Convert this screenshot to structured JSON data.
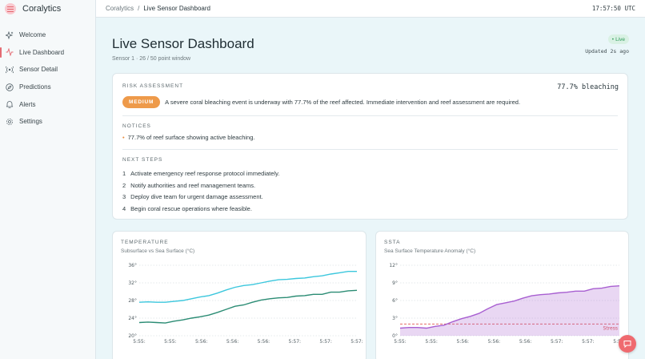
{
  "app": {
    "name": "Coralytics"
  },
  "sidebar": {
    "items": [
      {
        "label": "Welcome",
        "icon": "sparkle-icon"
      },
      {
        "label": "Live Dashboard",
        "icon": "pulse-icon",
        "active": true
      },
      {
        "label": "Sensor Detail",
        "icon": "radio-icon"
      },
      {
        "label": "Predictions",
        "icon": "compass-icon"
      },
      {
        "label": "Alerts",
        "icon": "bell-icon"
      },
      {
        "label": "Settings",
        "icon": "gear-icon"
      }
    ]
  },
  "topbar": {
    "breadcrumb": [
      "Coralytics",
      "Live Sensor Dashboard"
    ],
    "clock": "17:57:50 UTC"
  },
  "header": {
    "title": "Live Sensor Dashboard",
    "subtitle": "Sensor 1 · 26 / 50 point window",
    "live_label": "Live",
    "updated": "Updated 2s ago"
  },
  "risk": {
    "label": "RISK ASSESSMENT",
    "level": "MEDIUM",
    "bleaching": "77.7% bleaching",
    "description": "A severe coral bleaching event is underway with 77.7% of the reef affected. Immediate intervention and reef assessment are required.",
    "notices_label": "NOTICES",
    "notices": [
      "77.7% of reef surface showing active bleaching."
    ],
    "steps_label": "NEXT STEPS",
    "steps": [
      {
        "n": "1",
        "text": "Activate emergency reef response protocol immediately."
      },
      {
        "n": "2",
        "text": "Notify authorities and reef management teams."
      },
      {
        "n": "3",
        "text": "Deploy dive team for urgent damage assessment."
      },
      {
        "n": "4",
        "text": "Begin coral rescue operations where feasible."
      }
    ]
  },
  "colors": {
    "accent": "#e46a72",
    "medium": "#ee9a4a",
    "subsurface": "#2b8c74",
    "surface": "#3cc7dd",
    "ssta": "#a85fd1",
    "stress": "#e0534f"
  },
  "chart_data": [
    {
      "type": "line",
      "title": "TEMPERATURE",
      "subtitle": "Subsurface vs Sea Surface (°C)",
      "ylim": [
        20,
        36
      ],
      "yticks": [
        "36°",
        "32°",
        "28°",
        "24°",
        "20°"
      ],
      "xticks": [
        "5:55:",
        "5:55:",
        "5:56:",
        "5:56:",
        "5:56:",
        "5:57:",
        "5:57:",
        "5:57:"
      ],
      "grid": true,
      "series": [
        {
          "values": [
            27.6,
            27.7,
            27.6,
            27.6,
            27.8,
            28.0,
            28.4,
            28.8,
            29.1,
            29.7,
            30.4,
            31.0,
            31.4,
            31.6,
            32.0,
            32.4,
            32.7,
            32.8,
            33.0,
            33.1,
            33.4,
            33.6,
            34.0,
            34.3,
            34.6,
            34.6
          ]
        },
        {
          "values": [
            23.0,
            23.1,
            23.0,
            22.9,
            23.3,
            23.6,
            24.0,
            24.3,
            24.7,
            25.3,
            26.0,
            26.7,
            27.0,
            27.6,
            28.1,
            28.4,
            28.6,
            28.7,
            29.0,
            29.1,
            29.4,
            29.4,
            29.9,
            29.9,
            30.2,
            30.3
          ]
        }
      ]
    },
    {
      "type": "area",
      "title": "SSTA",
      "subtitle": "Sea Surface Temperature Anomaly (°C)",
      "ylim": [
        0,
        12
      ],
      "yticks": [
        "12°",
        "9°",
        "6°",
        "3°",
        "0°"
      ],
      "xticks": [
        "5:55:",
        "5:55:",
        "5:56:",
        "5:56:",
        "5:56:",
        "5:57:",
        "5:57:",
        "5:57:"
      ],
      "grid": true,
      "threshold": {
        "value": 2.0,
        "label": "Stress"
      },
      "series": [
        {
          "values": [
            1.3,
            1.4,
            1.4,
            1.3,
            1.6,
            1.8,
            2.4,
            2.9,
            3.3,
            3.8,
            4.6,
            5.3,
            5.6,
            5.9,
            6.4,
            6.8,
            7.0,
            7.1,
            7.3,
            7.4,
            7.6,
            7.6,
            8.0,
            8.1,
            8.4,
            8.5
          ]
        }
      ]
    }
  ]
}
